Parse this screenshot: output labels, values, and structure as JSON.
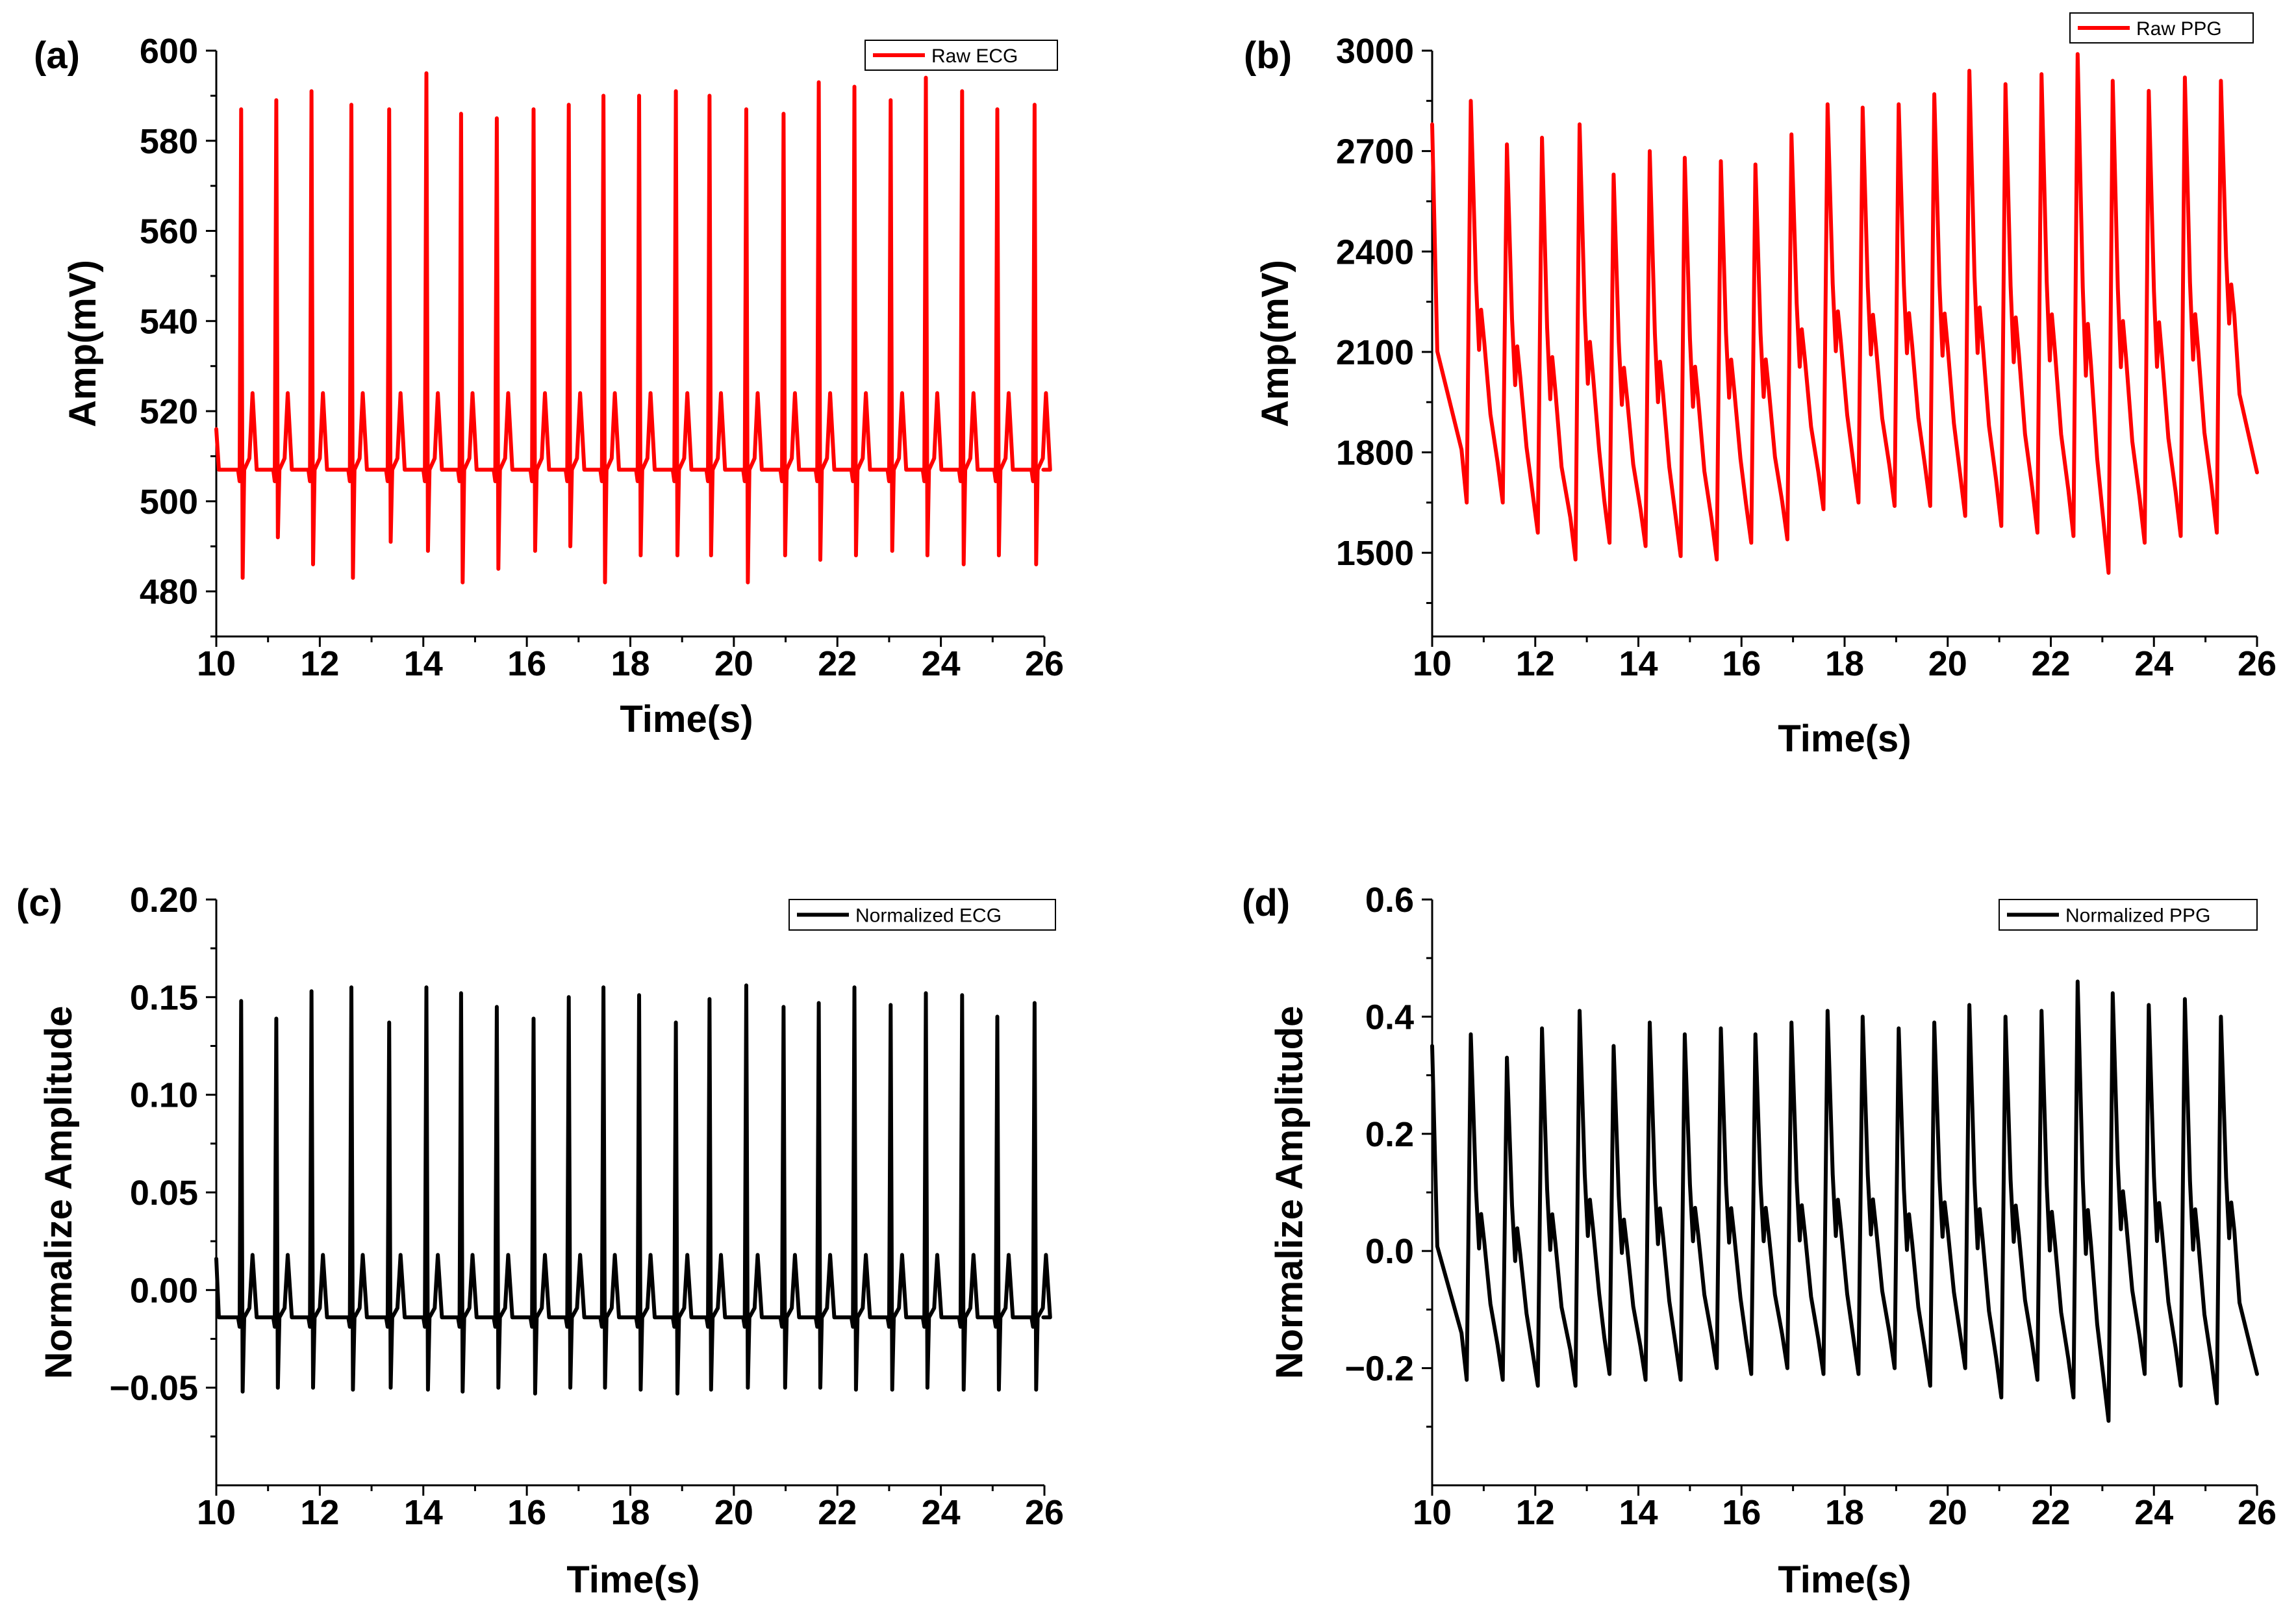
{
  "chart_data": [
    {
      "panel": "(a)",
      "type": "line",
      "signal": "ecg",
      "xlabel": "Time(s)",
      "ylabel": "Amp(mV)",
      "xlim": [
        10,
        26
      ],
      "ylim": [
        470,
        600
      ],
      "xticks": [
        10,
        12,
        14,
        16,
        18,
        20,
        22,
        24,
        26
      ],
      "yticks": [
        480,
        500,
        520,
        540,
        560,
        580,
        600
      ],
      "color": "#ff0000",
      "legend": "top-right",
      "series": [
        {
          "name": "Raw ECG",
          "start_value": 516,
          "baseline": 507,
          "t_wave": 524,
          "beat_times": [
            10.5,
            11.18,
            11.86,
            12.63,
            13.36,
            14.08,
            14.75,
            15.44,
            16.15,
            16.83,
            17.5,
            18.19,
            18.9,
            19.55,
            20.26,
            20.98,
            21.66,
            22.35,
            23.05,
            23.73,
            24.43,
            25.11,
            25.83
          ],
          "r_peaks": [
            587,
            589,
            591,
            588,
            587,
            595,
            586,
            585,
            587,
            588,
            590,
            590,
            591,
            590,
            587,
            586,
            593,
            592,
            589,
            594,
            591,
            587,
            588
          ],
          "s_troughs": [
            483,
            492,
            486,
            483,
            491,
            489,
            482,
            485,
            489,
            490,
            482,
            488,
            488,
            488,
            482,
            488,
            487,
            488,
            489,
            488,
            486,
            488,
            486
          ]
        }
      ]
    },
    {
      "panel": "(b)",
      "type": "line",
      "signal": "ppg",
      "xlabel": "Time(s)",
      "ylabel": "Amp(mV)",
      "xlim": [
        10,
        26
      ],
      "ylim": [
        1250,
        3000
      ],
      "xticks": [
        10,
        12,
        14,
        16,
        18,
        20,
        22,
        24,
        26
      ],
      "yticks": [
        1500,
        1800,
        2100,
        2400,
        2700,
        3000
      ],
      "color": "#ff0000",
      "legend": "top-right",
      "series": [
        {
          "name": "Raw PPG",
          "start_value": 2780,
          "end_value": 1740,
          "pulse_times": [
            10.75,
            11.45,
            12.13,
            12.86,
            13.52,
            14.22,
            14.9,
            15.6,
            16.27,
            16.97,
            17.67,
            18.35,
            19.05,
            19.74,
            20.42,
            21.12,
            21.82,
            22.52,
            23.2,
            23.9,
            24.6,
            25.3
          ],
          "peaks": [
            2850,
            2720,
            2740,
            2780,
            2630,
            2700,
            2680,
            2670,
            2660,
            2750,
            2840,
            2830,
            2840,
            2870,
            2940,
            2900,
            2930,
            2990,
            2910,
            2880,
            2920,
            2910
          ],
          "troughs": [
            1650,
            1650,
            1560,
            1480,
            1530,
            1520,
            1490,
            1480,
            1530,
            1540,
            1630,
            1650,
            1640,
            1640,
            1610,
            1580,
            1560,
            1550,
            1440,
            1530,
            1550,
            1560
          ]
        }
      ]
    },
    {
      "panel": "(c)",
      "type": "line",
      "signal": "ecg",
      "xlabel": "Time(s)",
      "ylabel": "Normalize Amplitude",
      "xlim": [
        10,
        26
      ],
      "ylim": [
        -0.1,
        0.2
      ],
      "xticks": [
        10,
        12,
        14,
        16,
        18,
        20,
        22,
        24,
        26
      ],
      "yticks": [
        -0.05,
        0.0,
        0.05,
        0.1,
        0.15,
        0.2
      ],
      "ytick_labels": [
        "−0.05",
        "0.00",
        "0.05",
        "0.10",
        "0.15",
        "0.20"
      ],
      "color": "#000000",
      "legend": "top-right",
      "series": [
        {
          "name": "Normalized ECG",
          "start_value": 0.016,
          "baseline": -0.014,
          "t_wave": 0.018,
          "beat_times": [
            10.5,
            11.18,
            11.86,
            12.63,
            13.36,
            14.08,
            14.75,
            15.44,
            16.15,
            16.83,
            17.5,
            18.19,
            18.9,
            19.55,
            20.26,
            20.98,
            21.66,
            22.35,
            23.05,
            23.73,
            24.43,
            25.11,
            25.83
          ],
          "r_peaks": [
            0.148,
            0.139,
            0.153,
            0.155,
            0.137,
            0.155,
            0.152,
            0.145,
            0.139,
            0.15,
            0.155,
            0.151,
            0.137,
            0.149,
            0.156,
            0.145,
            0.147,
            0.155,
            0.146,
            0.152,
            0.151,
            0.14,
            0.147
          ],
          "s_troughs": [
            -0.052,
            -0.05,
            -0.05,
            -0.051,
            -0.05,
            -0.051,
            -0.052,
            -0.05,
            -0.053,
            -0.05,
            -0.05,
            -0.051,
            -0.053,
            -0.051,
            -0.05,
            -0.05,
            -0.05,
            -0.051,
            -0.051,
            -0.05,
            -0.051,
            -0.051,
            -0.051
          ]
        }
      ]
    },
    {
      "panel": "(d)",
      "type": "line",
      "signal": "ppg",
      "xlabel": "Time(s)",
      "ylabel": "Normalize Amplitude",
      "xlim": [
        10,
        26
      ],
      "ylim": [
        -0.4,
        0.6
      ],
      "xticks": [
        10,
        12,
        14,
        16,
        18,
        20,
        22,
        24,
        26
      ],
      "yticks": [
        -0.2,
        0.0,
        0.2,
        0.4,
        0.6
      ],
      "ytick_labels": [
        "−0.2",
        "0.0",
        "0.2",
        "0.4",
        "0.6"
      ],
      "color": "#000000",
      "legend": "top-right",
      "series": [
        {
          "name": "Normalized PPG",
          "start_value": 0.35,
          "end_value": -0.21,
          "pulse_times": [
            10.75,
            11.45,
            12.13,
            12.86,
            13.52,
            14.22,
            14.9,
            15.6,
            16.27,
            16.97,
            17.67,
            18.35,
            19.05,
            19.74,
            20.42,
            21.12,
            21.82,
            22.52,
            23.2,
            23.9,
            24.6,
            25.3
          ],
          "peaks": [
            0.37,
            0.33,
            0.38,
            0.41,
            0.35,
            0.39,
            0.37,
            0.38,
            0.37,
            0.39,
            0.41,
            0.4,
            0.38,
            0.39,
            0.42,
            0.4,
            0.41,
            0.46,
            0.44,
            0.42,
            0.43,
            0.4
          ],
          "troughs": [
            -0.22,
            -0.22,
            -0.23,
            -0.23,
            -0.21,
            -0.22,
            -0.22,
            -0.2,
            -0.21,
            -0.2,
            -0.21,
            -0.21,
            -0.2,
            -0.23,
            -0.2,
            -0.25,
            -0.22,
            -0.25,
            -0.29,
            -0.21,
            -0.23,
            -0.26
          ]
        }
      ]
    }
  ]
}
